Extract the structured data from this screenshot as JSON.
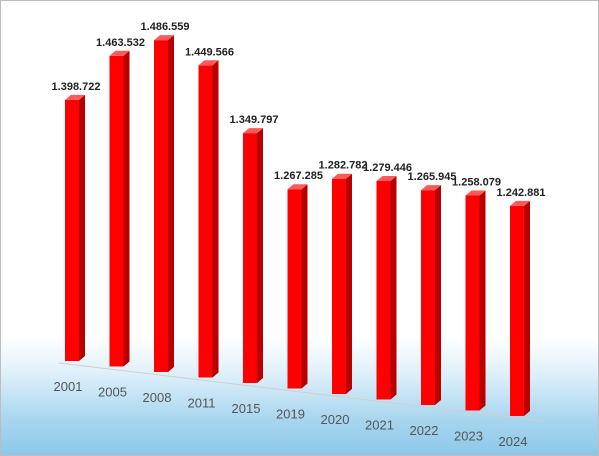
{
  "chart_data": {
    "type": "bar",
    "categories": [
      "2001",
      "2005",
      "2008",
      "2011",
      "2015",
      "2019",
      "2020",
      "2021",
      "2022",
      "2023",
      "2024"
    ],
    "values": [
      1.398722,
      1.463532,
      1.486559,
      1.449566,
      1.349797,
      1.267285,
      1.282782,
      1.279446,
      1.265945,
      1.258079,
      1.242881
    ],
    "value_labels": [
      "1.398.722",
      "1.463.532",
      "1.486.559",
      "1.449.566",
      "1.349.797",
      "1.267.285",
      "1.282.782",
      "1.279.446",
      "1.265.945",
      "1.258.079",
      "1.242.881"
    ],
    "title": "",
    "xlabel": "",
    "ylabel": "",
    "ylim": [
      1.0,
      1.5
    ],
    "legend": "none",
    "grid": false,
    "colors": {
      "bar_front": "#ff0000",
      "bar_side": "#b80000",
      "bar_top": "#ff5a5a"
    }
  }
}
